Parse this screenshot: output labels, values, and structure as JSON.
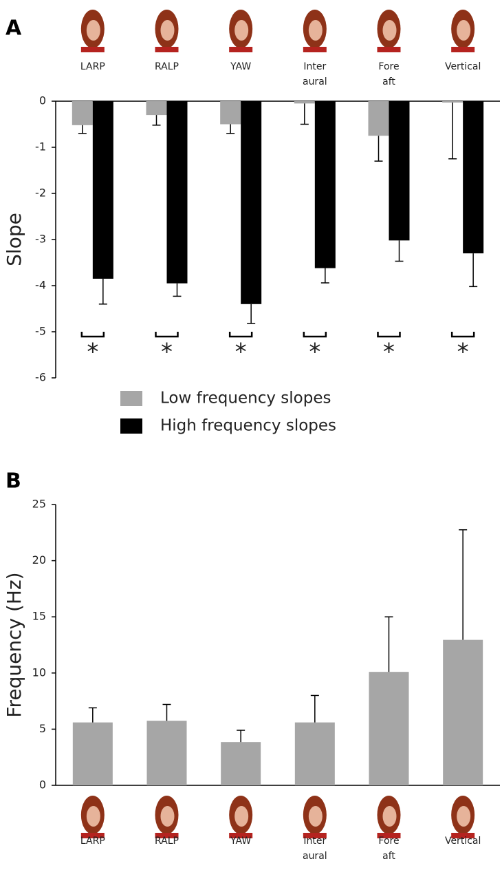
{
  "chart_data": [
    {
      "type": "bar",
      "panel": "A",
      "ylabel": "Slope",
      "categories": [
        "LARP",
        "RALP",
        "YAW",
        "Inter aural",
        "Fore aft",
        "Vertical"
      ],
      "ylim": [
        -6,
        0
      ],
      "yticks": [
        0,
        -1,
        -2,
        -3,
        -4,
        -5,
        -6
      ],
      "series": [
        {
          "name": "Low frequency slopes",
          "color": "#a6a6a6",
          "values": [
            -0.52,
            -0.3,
            -0.5,
            -0.05,
            -0.75,
            -0.03
          ],
          "errors": [
            0.18,
            0.22,
            0.2,
            0.45,
            0.55,
            1.22
          ]
        },
        {
          "name": "High frequency slopes",
          "color": "#000000",
          "values": [
            -3.85,
            -3.95,
            -4.4,
            -3.62,
            -3.02,
            -3.3
          ],
          "errors": [
            0.55,
            0.28,
            0.42,
            0.32,
            0.45,
            0.72
          ]
        }
      ],
      "significance": [
        "*",
        "*",
        "*",
        "*",
        "*",
        "*"
      ],
      "legend": "bottom"
    },
    {
      "type": "bar",
      "panel": "B",
      "ylabel": "Frequency (Hz)",
      "categories": [
        "LARP",
        "RALP",
        "YAW",
        "Inter aural",
        "Fore aft",
        "Vertical"
      ],
      "ylim": [
        0,
        25
      ],
      "yticks": [
        0,
        5,
        10,
        15,
        20,
        25
      ],
      "series": [
        {
          "color": "#a6a6a6",
          "values": [
            5.6,
            5.75,
            3.85,
            5.6,
            10.1,
            12.95
          ],
          "errors": [
            1.3,
            1.45,
            1.05,
            2.4,
            4.9,
            9.8
          ]
        }
      ]
    }
  ]
}
